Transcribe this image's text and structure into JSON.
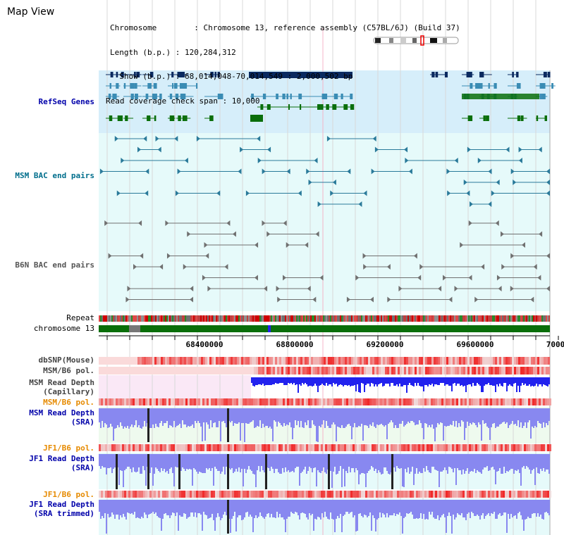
{
  "title": "Map View",
  "info": {
    "chromosome": "Chromosome        : Chromosome 13, reference assembly (C57BL/6J) (Build 37)",
    "length": "Length (b.p.) : 120,284,312",
    "show": "  Show (b.p.) : 68,014,048-70,014,549 : 2,000,502 bp",
    "coverage": "Read coverage check span : 10,000"
  },
  "tracks": {
    "refseq": "RefSeq Genes",
    "msm_bac": "MSM BAC end pairs",
    "b6n_bac": "B6N BAC end pairs",
    "repeat": "Repeat",
    "chromosome": "chromosome 13",
    "dbsnp": "dbSNP(Mouse)",
    "msm_pol": "MSM/B6 pol.",
    "msm_cap_1": "MSM Read Depth",
    "msm_cap_2": "(Capillary)",
    "msm_pol2": "MSM/B6 pol.",
    "msm_sra_1": "MSM Read Depth",
    "msm_sra_2": "(SRA)",
    "jf1_pol": "JF1/B6 pol.",
    "jf1_sra_1": "JF1 Read Depth",
    "jf1_sra_2": "(SRA)",
    "jf1_pol2": "JF1/B6 pol.",
    "jf1_trim_1": "JF1 Read Depth",
    "jf1_trim_2": "(SRA trimmed)"
  },
  "axis": {
    "ticks": [
      "68400000",
      "68800000",
      "69200000",
      "69600000",
      "7000"
    ]
  },
  "colors": {
    "refseq_bg": "#d6eefa",
    "bac_bg": "#e6fafa",
    "gene_dark": "#0a2a60",
    "gene_mid": "#3a8cb4",
    "gene_green": "#0a6e0a",
    "msm_bac": "#2a7a9a",
    "b6n_bac": "#707070",
    "chrom_green": "#0a6e0a",
    "depth_blue": "#2222ee",
    "depth_light": "#8888f0",
    "label_blue": "#0000aa",
    "label_teal": "#006e8c",
    "label_orange": "#e68a00",
    "label_gray": "#444444"
  }
}
